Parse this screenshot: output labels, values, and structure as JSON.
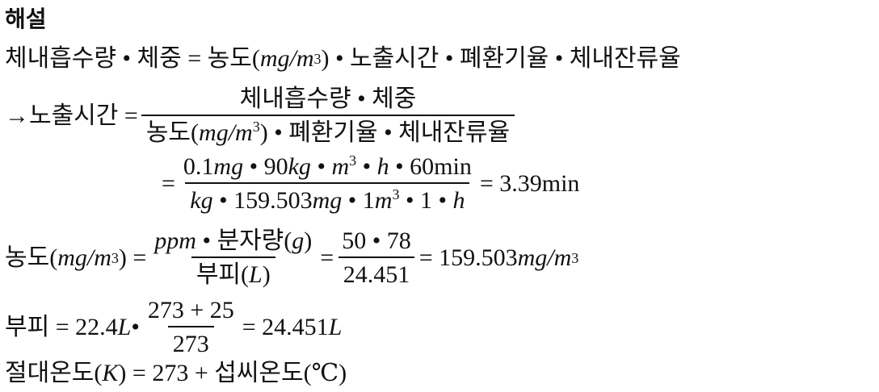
{
  "title": "해설",
  "eq1": {
    "a": "체내흡수량 • 체중 = 농도(",
    "unit": "mg/m",
    "exp": "3",
    "b": ") • 노출시간 • 폐환기율 • 체내잔류율"
  },
  "eq2": {
    "lhs": "→노출시간 =",
    "num": "체내흡수량 • 체중",
    "den_a": "농도(",
    "den_unit": "mg/m",
    "den_exp": "3",
    "den_b": ") • 폐환기율 • 체내잔류율"
  },
  "eq3": {
    "lhs": "=",
    "num_a": "0.1",
    "num_mg": "mg",
    "num_b": " • 90",
    "num_kg": "kg",
    "num_c": " • ",
    "num_m": "m",
    "num_exp": "3",
    "num_d": " • ",
    "num_h": "h",
    "num_e": " • 60min",
    "den_kg": "kg",
    "den_a": " • 159.503",
    "den_mg": "mg",
    "den_b": " • 1",
    "den_m": "m",
    "den_exp": "3",
    "den_c": " • 1 • ",
    "den_h": "h",
    "rhs": "= 3.39min"
  },
  "eq4": {
    "lhs_a": "농도(",
    "lhs_unit": "mg/m",
    "lhs_exp": "3",
    "lhs_b": ") =",
    "f1_num_ppm": "ppm",
    "f1_num_b": " • 분자량(",
    "f1_num_g": "g",
    "f1_num_c": ")",
    "f1_den_a": "부피(",
    "f1_den_L": "L",
    "f1_den_b": ")",
    "eq": "=",
    "f2_num": "50 • 78",
    "f2_den": "24.451",
    "rhs_a": "= 159.503",
    "rhs_unit": "mg/m",
    "rhs_exp": "3"
  },
  "eq5": {
    "lhs": "부피 = 22.4",
    "L": "L",
    "dot": " • ",
    "num": "273 + 25",
    "den": "273",
    "rhs": "= 24.451",
    "rhs_L": "L"
  },
  "eq6": {
    "a": "절대온도(",
    "K": "K",
    "b": ") = 273 + 섭씨온도(℃)"
  }
}
